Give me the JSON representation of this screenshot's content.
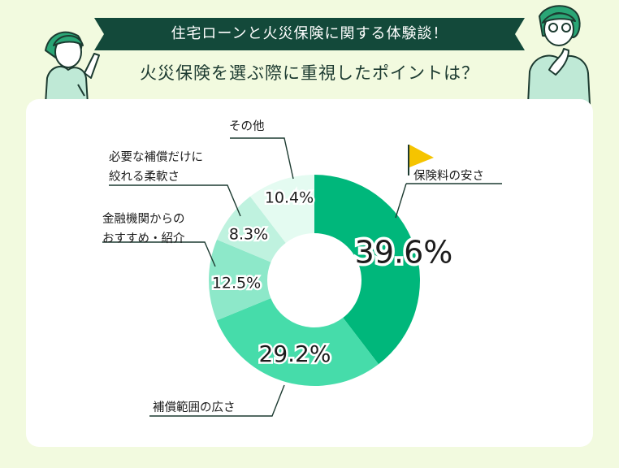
{
  "header": {
    "banner_text": "住宅ローンと火災保険に関する体験談！",
    "title": "火災保険を選ぶ際に重視したポイントは？"
  },
  "colors": {
    "background": "#f2fadf",
    "banner": "#13493a",
    "card": "#ffffff",
    "flag": "#f5c400"
  },
  "chart_data": {
    "type": "pie",
    "donut": true,
    "title": "火災保険を選ぶ際に重視したポイントは？",
    "slices": [
      {
        "label": "保険料の安さ",
        "label_lines": [
          "保険料の安さ"
        ],
        "value": 39.6,
        "display": "39.6%",
        "color": "#00b77b"
      },
      {
        "label": "補償範囲の広さ",
        "label_lines": [
          "補償範囲の広さ"
        ],
        "value": 29.2,
        "display": "29.2%",
        "color": "#46dcaa"
      },
      {
        "label": "金融機関からのおすすめ・紹介",
        "label_lines": [
          "金融機関からの",
          "おすすめ・紹介"
        ],
        "value": 12.5,
        "display": "12.5%",
        "color": "#8de8c9"
      },
      {
        "label": "必要な補償だけに絞れる柔軟さ",
        "label_lines": [
          "必要な補償だけに",
          "絞れる柔軟さ"
        ],
        "value": 8.3,
        "display": "8.3%",
        "color": "#bff2df"
      },
      {
        "label": "その他",
        "label_lines": [
          "その他"
        ],
        "value": 10.4,
        "display": "10.4%",
        "color": "#e4fbf1"
      }
    ]
  }
}
